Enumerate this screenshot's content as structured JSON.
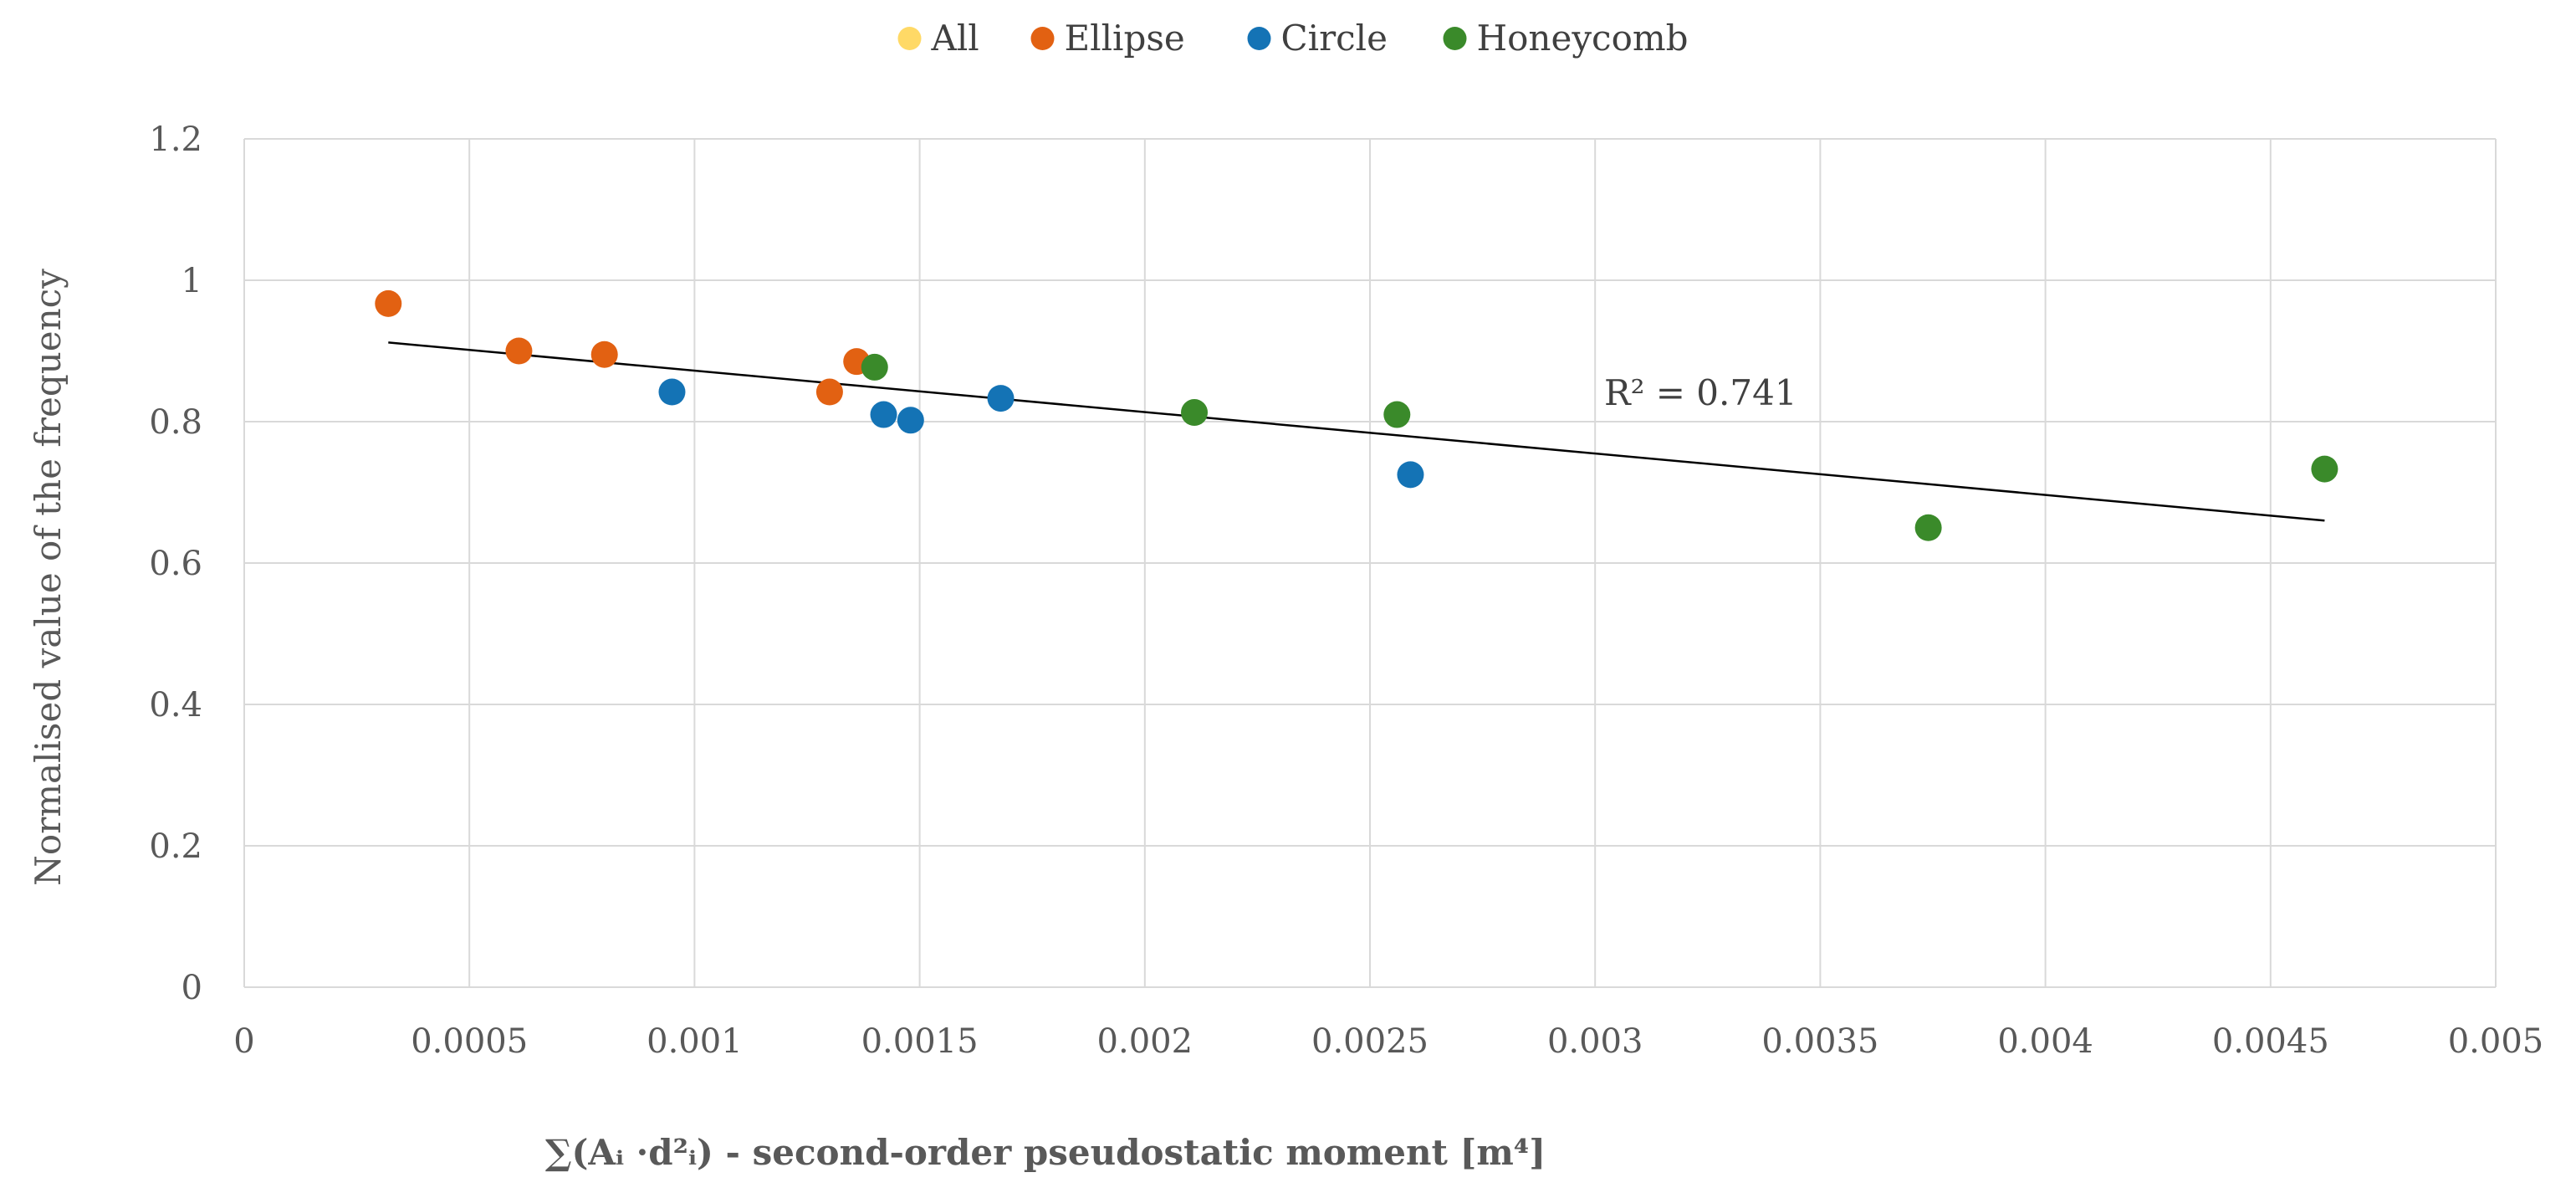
{
  "chart_data": {
    "type": "scatter",
    "title": "",
    "xlabel": "∑(Aᵢ ·d²ᵢ) - second-order pseudostatic moment [m⁴]",
    "ylabel": "Normalised value of the frequency",
    "xlim": [
      0,
      0.005
    ],
    "ylim": [
      0,
      1.2
    ],
    "x_ticks": [
      0,
      0.0005,
      0.001,
      0.0015,
      0.002,
      0.0025,
      0.003,
      0.0035,
      0.004,
      0.0045,
      0.005
    ],
    "x_tick_labels": [
      "0",
      "0.0005",
      "0.001",
      "0.0015",
      "0.002",
      "0.0025",
      "0.003",
      "0.0035",
      "0.004",
      "0.0045",
      "0.005"
    ],
    "y_ticks": [
      0,
      0.2,
      0.4,
      0.6,
      0.8,
      1.0,
      1.2
    ],
    "y_tick_labels": [
      "0",
      "0.2",
      "0.4",
      "0.6",
      "0.8",
      "1",
      "1.2"
    ],
    "grid": true,
    "legend_position": "top-center",
    "series": [
      {
        "name": "All",
        "color": "#FFD966",
        "points": []
      },
      {
        "name": "Ellipse",
        "color": "#E26112",
        "points": [
          [
            0.00032,
            0.967
          ],
          [
            0.00061,
            0.9
          ],
          [
            0.0008,
            0.895
          ],
          [
            0.00136,
            0.885
          ],
          [
            0.0013,
            0.842
          ]
        ]
      },
      {
        "name": "Circle",
        "color": "#1473B5",
        "points": [
          [
            0.00095,
            0.842
          ],
          [
            0.00142,
            0.81
          ],
          [
            0.00148,
            0.802
          ],
          [
            0.00168,
            0.833
          ],
          [
            0.00259,
            0.725
          ]
        ]
      },
      {
        "name": "Honeycomb",
        "color": "#3A8A2A",
        "points": [
          [
            0.0014,
            0.877
          ],
          [
            0.00211,
            0.813
          ],
          [
            0.00256,
            0.81
          ],
          [
            0.00374,
            0.65
          ],
          [
            0.00462,
            0.733
          ]
        ]
      }
    ],
    "trendline": {
      "x_start": 0.00032,
      "y_start": 0.912,
      "x_end": 0.00462,
      "y_end": 0.66,
      "color": "#000000"
    },
    "annotations": [
      {
        "text": "R² = 0.741",
        "x": 0.00302,
        "y": 0.84
      }
    ]
  }
}
